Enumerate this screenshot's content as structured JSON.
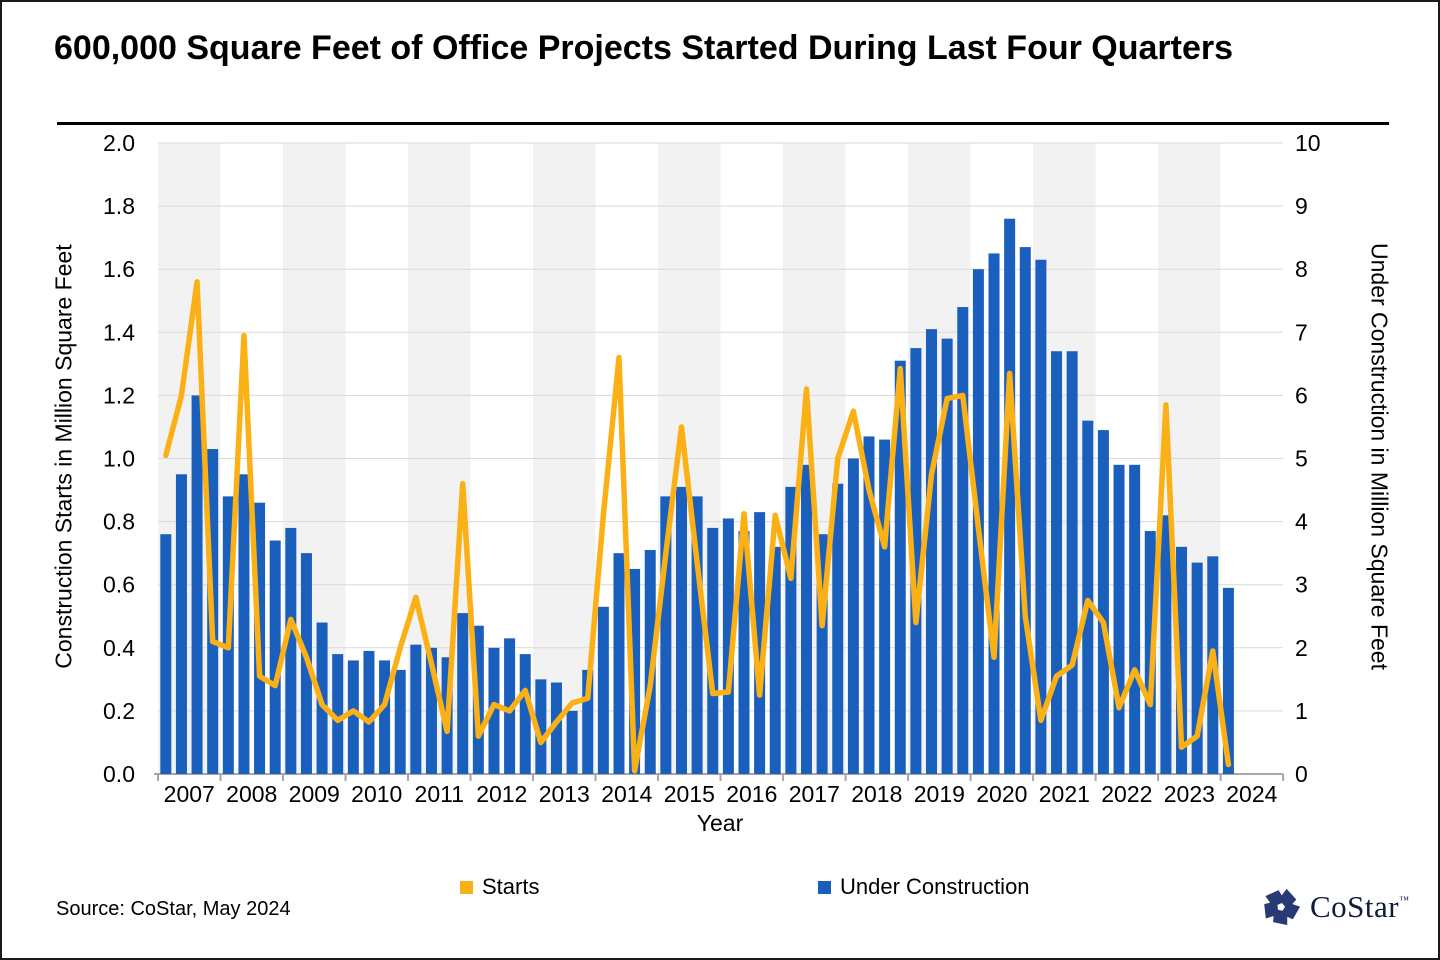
{
  "title": "600,000 Square Feet of Office Projects Started During Last Four Quarters",
  "source_note": "Source: CoStar, May 2024",
  "logo": {
    "text": "CoStar",
    "tm": "TM"
  },
  "legend": [
    {
      "label": "Starts",
      "color": "#FBB116"
    },
    {
      "label": "Under Construction",
      "color": "#1A5FBB"
    }
  ],
  "colors": {
    "bar": "#1A5FBB",
    "line": "#FBB116",
    "band_gray": "#F2F2F2",
    "band_white": "#FFFFFF",
    "gridline": "#D9D9D9",
    "axis_line": "#A6A6A6",
    "logo_navy": "#273A76"
  },
  "chart_data": {
    "type": "bar",
    "note": "dual-axis combo: quarterly bars (right axis) + quarterly line (left axis), 2007Q1-2024Q1",
    "title": "600,000 Square Feet of Office Projects Started During Last Four Quarters",
    "xlabel": "Year",
    "years": [
      "2007",
      "2008",
      "2009",
      "2010",
      "2011",
      "2012",
      "2013",
      "2014",
      "2015",
      "2016",
      "2017",
      "2018",
      "2019",
      "2020",
      "2021",
      "2022",
      "2023",
      "2024"
    ],
    "left_axis": {
      "title": "Construction Starts in Million Square Feet",
      "min": 0.0,
      "max": 2.0,
      "ticks": [
        "2.0",
        "1.8",
        "1.6",
        "1.4",
        "1.2",
        "1.0",
        "0.8",
        "0.6",
        "0.4",
        "0.2",
        "0.0"
      ]
    },
    "right_axis": {
      "title": "Under Construction in Million Square Feet",
      "min": 0,
      "max": 10,
      "ticks": [
        "10",
        "9",
        "8",
        "7",
        "6",
        "5",
        "4",
        "3",
        "2",
        "1",
        "0"
      ]
    },
    "grid": true,
    "legend_position": "bottom",
    "series": [
      {
        "name": "Starts",
        "type": "line",
        "axis": "left",
        "color": "#FBB116",
        "values": [
          1.01,
          1.2,
          1.56,
          0.42,
          0.4,
          1.39,
          0.31,
          0.28,
          0.49,
          0.37,
          0.22,
          0.17,
          0.2,
          0.165,
          0.22,
          0.4,
          0.56,
          0.35,
          0.135,
          0.92,
          0.12,
          0.22,
          0.2,
          0.265,
          0.1,
          0.165,
          0.225,
          0.24,
          0.82,
          1.32,
          0.01,
          0.28,
          0.7,
          1.1,
          0.67,
          0.255,
          0.26,
          0.825,
          0.25,
          0.82,
          0.62,
          1.22,
          0.47,
          1.0,
          1.15,
          0.9,
          0.72,
          1.285,
          0.48,
          0.95,
          1.19,
          1.2,
          0.78,
          0.37,
          1.27,
          0.5,
          0.17,
          0.31,
          0.345,
          0.55,
          0.48,
          0.21,
          0.33,
          0.22,
          1.17,
          0.085,
          0.12,
          0.39,
          0.03
        ]
      },
      {
        "name": "Under Construction",
        "type": "bar",
        "axis": "right",
        "color": "#1A5FBB",
        "values": [
          3.8,
          4.75,
          6.0,
          5.15,
          4.4,
          4.75,
          4.3,
          3.7,
          3.9,
          3.5,
          2.4,
          1.9,
          1.8,
          1.95,
          1.8,
          1.65,
          2.05,
          2.0,
          1.85,
          2.55,
          2.35,
          2.0,
          2.15,
          1.9,
          1.5,
          1.45,
          1.0,
          1.65,
          2.65,
          3.5,
          3.25,
          3.55,
          4.4,
          4.55,
          4.4,
          3.9,
          4.05,
          3.85,
          4.15,
          3.6,
          4.55,
          4.9,
          3.8,
          4.6,
          5.0,
          5.35,
          5.3,
          6.55,
          6.75,
          7.05,
          6.9,
          7.4,
          8.0,
          8.25,
          8.8,
          8.35,
          8.15,
          6.7,
          6.7,
          5.6,
          5.45,
          4.9,
          4.9,
          3.85,
          4.1,
          3.6,
          3.35,
          3.45,
          2.95
        ]
      }
    ]
  }
}
